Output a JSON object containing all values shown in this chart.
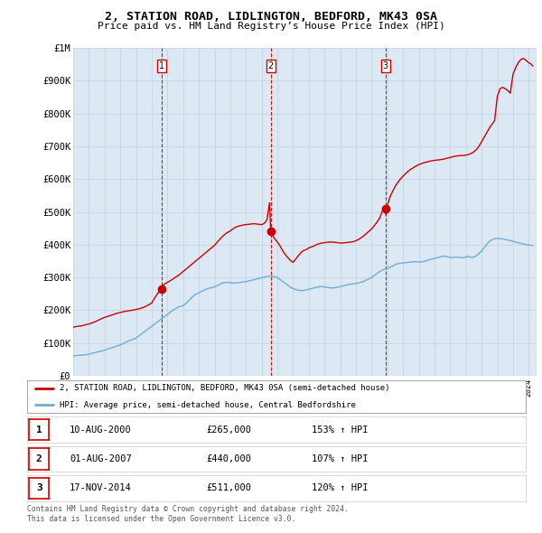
{
  "title": "2, STATION ROAD, LIDLINGTON, BEDFORD, MK43 0SA",
  "subtitle": "Price paid vs. HM Land Registry’s House Price Index (HPI)",
  "background_color": "#ffffff",
  "plot_bg_color": "#dce9f5",
  "grid_color": "#c8d8e8",
  "ylim": [
    0,
    1000000
  ],
  "yticks": [
    0,
    100000,
    200000,
    300000,
    400000,
    500000,
    600000,
    700000,
    800000,
    900000,
    1000000
  ],
  "ytick_labels": [
    "£0",
    "£100K",
    "£200K",
    "£300K",
    "£400K",
    "£500K",
    "£600K",
    "£700K",
    "£800K",
    "£900K",
    "£1M"
  ],
  "sale_dates": [
    "2000-08-10",
    "2007-08-01",
    "2014-11-17"
  ],
  "sale_prices": [
    265000,
    440000,
    511000
  ],
  "sale_labels": [
    "1",
    "2",
    "3"
  ],
  "sale_pct": [
    "153%",
    "107%",
    "120%"
  ],
  "sale_date_labels": [
    "10-AUG-2000",
    "01-AUG-2007",
    "17-NOV-2014"
  ],
  "hpi_color": "#6baed6",
  "price_color": "#cc0000",
  "vline_color": "#cc0000",
  "legend_label_price": "2, STATION ROAD, LIDLINGTON, BEDFORD, MK43 0SA (semi-detached house)",
  "legend_label_hpi": "HPI: Average price, semi-detached house, Central Bedfordshire",
  "footer": "Contains HM Land Registry data © Crown copyright and database right 2024.\nThis data is licensed under the Open Government Licence v3.0.",
  "hpi_x": [
    1995.0,
    1995.08,
    1995.17,
    1995.25,
    1995.33,
    1995.42,
    1995.5,
    1995.58,
    1995.67,
    1995.75,
    1995.83,
    1995.92,
    1996.0,
    1996.08,
    1996.17,
    1996.25,
    1996.33,
    1996.42,
    1996.5,
    1996.58,
    1996.67,
    1996.75,
    1996.83,
    1996.92,
    1997.0,
    1997.08,
    1997.17,
    1997.25,
    1997.33,
    1997.42,
    1997.5,
    1997.58,
    1997.67,
    1997.75,
    1997.83,
    1997.92,
    1998.0,
    1998.08,
    1998.17,
    1998.25,
    1998.33,
    1998.42,
    1998.5,
    1998.58,
    1998.67,
    1998.75,
    1998.83,
    1998.92,
    1999.0,
    1999.08,
    1999.17,
    1999.25,
    1999.33,
    1999.42,
    1999.5,
    1999.58,
    1999.67,
    1999.75,
    1999.83,
    1999.92,
    2000.0,
    2000.08,
    2000.17,
    2000.25,
    2000.33,
    2000.42,
    2000.5,
    2000.58,
    2000.67,
    2000.75,
    2000.83,
    2000.92,
    2001.0,
    2001.08,
    2001.17,
    2001.25,
    2001.33,
    2001.42,
    2001.5,
    2001.58,
    2001.67,
    2001.75,
    2001.83,
    2001.92,
    2002.0,
    2002.08,
    2002.17,
    2002.25,
    2002.33,
    2002.42,
    2002.5,
    2002.58,
    2002.67,
    2002.75,
    2002.83,
    2002.92,
    2003.0,
    2003.08,
    2003.17,
    2003.25,
    2003.33,
    2003.42,
    2003.5,
    2003.58,
    2003.67,
    2003.75,
    2003.83,
    2003.92,
    2004.0,
    2004.08,
    2004.17,
    2004.25,
    2004.33,
    2004.42,
    2004.5,
    2004.58,
    2004.67,
    2004.75,
    2004.83,
    2004.92,
    2005.0,
    2005.08,
    2005.17,
    2005.25,
    2005.33,
    2005.42,
    2005.5,
    2005.58,
    2005.67,
    2005.75,
    2005.83,
    2005.92,
    2006.0,
    2006.08,
    2006.17,
    2006.25,
    2006.33,
    2006.42,
    2006.5,
    2006.58,
    2006.67,
    2006.75,
    2006.83,
    2006.92,
    2007.0,
    2007.08,
    2007.17,
    2007.25,
    2007.33,
    2007.42,
    2007.5,
    2007.58,
    2007.67,
    2007.75,
    2007.83,
    2007.92,
    2008.0,
    2008.08,
    2008.17,
    2008.25,
    2008.33,
    2008.42,
    2008.5,
    2008.58,
    2008.67,
    2008.75,
    2008.83,
    2008.92,
    2009.0,
    2009.08,
    2009.17,
    2009.25,
    2009.33,
    2009.42,
    2009.5,
    2009.58,
    2009.67,
    2009.75,
    2009.83,
    2009.92,
    2010.0,
    2010.08,
    2010.17,
    2010.25,
    2010.33,
    2010.42,
    2010.5,
    2010.58,
    2010.67,
    2010.75,
    2010.83,
    2010.92,
    2011.0,
    2011.08,
    2011.17,
    2011.25,
    2011.33,
    2011.42,
    2011.5,
    2011.58,
    2011.67,
    2011.75,
    2011.83,
    2011.92,
    2012.0,
    2012.08,
    2012.17,
    2012.25,
    2012.33,
    2012.42,
    2012.5,
    2012.58,
    2012.67,
    2012.75,
    2012.83,
    2012.92,
    2013.0,
    2013.08,
    2013.17,
    2013.25,
    2013.33,
    2013.42,
    2013.5,
    2013.58,
    2013.67,
    2013.75,
    2013.83,
    2013.92,
    2014.0,
    2014.08,
    2014.17,
    2014.25,
    2014.33,
    2014.42,
    2014.5,
    2014.58,
    2014.67,
    2014.75,
    2014.83,
    2014.92,
    2015.0,
    2015.08,
    2015.17,
    2015.25,
    2015.33,
    2015.42,
    2015.5,
    2015.58,
    2015.67,
    2015.75,
    2015.83,
    2015.92,
    2016.0,
    2016.08,
    2016.17,
    2016.25,
    2016.33,
    2016.42,
    2016.5,
    2016.58,
    2016.67,
    2016.75,
    2016.83,
    2016.92,
    2017.0,
    2017.08,
    2017.17,
    2017.25,
    2017.33,
    2017.42,
    2017.5,
    2017.58,
    2017.67,
    2017.75,
    2017.83,
    2017.92,
    2018.0,
    2018.08,
    2018.17,
    2018.25,
    2018.33,
    2018.42,
    2018.5,
    2018.58,
    2018.67,
    2018.75,
    2018.83,
    2018.92,
    2019.0,
    2019.08,
    2019.17,
    2019.25,
    2019.33,
    2019.42,
    2019.5,
    2019.58,
    2019.67,
    2019.75,
    2019.83,
    2019.92,
    2020.0,
    2020.08,
    2020.17,
    2020.25,
    2020.33,
    2020.42,
    2020.5,
    2020.58,
    2020.67,
    2020.75,
    2020.83,
    2020.92,
    2021.0,
    2021.08,
    2021.17,
    2021.25,
    2021.33,
    2021.42,
    2021.5,
    2021.58,
    2021.67,
    2021.75,
    2021.83,
    2021.92,
    2022.0,
    2022.08,
    2022.17,
    2022.25,
    2022.33,
    2022.42,
    2022.5,
    2022.58,
    2022.67,
    2022.75,
    2022.83,
    2022.92,
    2023.0,
    2023.08,
    2023.17,
    2023.25,
    2023.33,
    2023.42,
    2023.5,
    2023.58,
    2023.67,
    2023.75,
    2023.83,
    2023.92,
    2024.0,
    2024.08,
    2024.17,
    2024.25
  ],
  "hpi_y": [
    60000,
    61000,
    62000,
    61500,
    62500,
    63000,
    62000,
    63500,
    64000,
    63000,
    64500,
    65000,
    66000,
    67000,
    68500,
    69000,
    70000,
    71000,
    72000,
    73500,
    74000,
    75000,
    76000,
    77000,
    78000,
    79500,
    81000,
    82000,
    83500,
    85000,
    86000,
    87500,
    89000,
    90000,
    91500,
    93000,
    94000,
    96000,
    98000,
    100000,
    102000,
    104000,
    106000,
    107000,
    108500,
    110000,
    112000,
    113000,
    115000,
    118000,
    121000,
    124000,
    127000,
    130000,
    133000,
    136000,
    139000,
    142000,
    145000,
    148000,
    151000,
    154000,
    157000,
    160000,
    163000,
    166000,
    169000,
    172000,
    175000,
    178000,
    181000,
    184000,
    187000,
    190000,
    193000,
    196000,
    199000,
    202000,
    205000,
    207000,
    209000,
    211000,
    212000,
    213000,
    214000,
    217000,
    220000,
    224000,
    228000,
    232000,
    236000,
    240000,
    244000,
    247000,
    249000,
    251000,
    253000,
    255000,
    257000,
    259000,
    261000,
    263000,
    265000,
    266000,
    267000,
    268000,
    269000,
    270000,
    271000,
    273000,
    275000,
    277000,
    279000,
    281000,
    283000,
    284000,
    284500,
    285000,
    285000,
    284500,
    284000,
    283500,
    283000,
    283000,
    283000,
    283500,
    284000,
    284500,
    285000,
    285500,
    286000,
    286500,
    287000,
    288000,
    289000,
    290000,
    291000,
    292000,
    293000,
    294000,
    295000,
    296000,
    297000,
    298000,
    299000,
    300000,
    301000,
    302000,
    303000,
    303500,
    304000,
    304000,
    304000,
    303000,
    302000,
    301000,
    300000,
    297000,
    294000,
    291000,
    288000,
    285000,
    282000,
    279000,
    276000,
    273000,
    270000,
    268000,
    266000,
    264500,
    263000,
    262000,
    261000,
    260500,
    260000,
    260000,
    260000,
    261000,
    262000,
    263000,
    264000,
    265000,
    266000,
    267000,
    268000,
    269000,
    270000,
    271000,
    271500,
    272000,
    272000,
    272000,
    271000,
    270000,
    269500,
    269000,
    268500,
    268000,
    268000,
    268000,
    268500,
    269000,
    270000,
    271000,
    272000,
    273000,
    274000,
    275000,
    276000,
    277000,
    278000,
    279000,
    280000,
    280500,
    281000,
    281000,
    281000,
    282000,
    283000,
    284000,
    285000,
    286500,
    288000,
    290000,
    292000,
    294000,
    296000,
    298000,
    300000,
    303000,
    306000,
    309000,
    312000,
    315000,
    318000,
    320000,
    322000,
    324000,
    325000,
    326000,
    327000,
    329000,
    331000,
    333000,
    335000,
    337000,
    339000,
    341000,
    342000,
    343000,
    343500,
    344000,
    344000,
    344500,
    345000,
    345500,
    346000,
    346500,
    347000,
    347500,
    348000,
    348000,
    348000,
    347500,
    347000,
    347000,
    347500,
    348000,
    349000,
    350000,
    351500,
    353000,
    354000,
    355000,
    356000,
    357000,
    358000,
    359000,
    360000,
    361000,
    362000,
    363000,
    364000,
    365000,
    365000,
    364000,
    363000,
    362000,
    361000,
    361000,
    361000,
    361500,
    362000,
    362000,
    362000,
    361000,
    360000,
    360000,
    360500,
    361000,
    362000,
    363000,
    364000,
    363000,
    362000,
    361000,
    362000,
    364000,
    366000,
    369000,
    373000,
    377000,
    381000,
    386000,
    391000,
    396000,
    401000,
    406000,
    410000,
    413000,
    415000,
    417000,
    418000,
    418500,
    419000,
    419000,
    418500,
    418000,
    417500,
    417000,
    416000,
    415000,
    414000,
    413000,
    412000,
    411000,
    410000,
    409000,
    408000,
    407000,
    406000,
    405000,
    404000,
    403000,
    402000,
    401000,
    400000,
    399500,
    399000,
    398500,
    398000,
    397500
  ],
  "price_x": [
    1995.0,
    1995.17,
    1995.5,
    1995.75,
    1996.0,
    1996.25,
    1996.5,
    1996.75,
    1997.0,
    1997.25,
    1997.5,
    1997.75,
    1998.0,
    1998.25,
    1998.5,
    1998.75,
    1999.0,
    1999.25,
    1999.5,
    1999.75,
    2000.0,
    2000.25,
    2000.58,
    2000.75,
    2001.0,
    2001.25,
    2001.5,
    2001.75,
    2002.0,
    2002.25,
    2002.5,
    2002.75,
    2003.0,
    2003.25,
    2003.5,
    2003.75,
    2004.0,
    2004.25,
    2004.5,
    2004.75,
    2005.0,
    2005.17,
    2005.33,
    2005.5,
    2005.67,
    2005.83,
    2006.0,
    2006.17,
    2006.33,
    2006.5,
    2006.67,
    2006.83,
    2007.0,
    2007.17,
    2007.33,
    2007.5,
    2007.58,
    2007.67,
    2007.75,
    2007.83,
    2008.0,
    2008.17,
    2008.33,
    2008.5,
    2008.67,
    2008.83,
    2009.0,
    2009.17,
    2009.33,
    2009.5,
    2009.67,
    2009.83,
    2010.0,
    2010.17,
    2010.33,
    2010.5,
    2010.67,
    2010.83,
    2011.0,
    2011.17,
    2011.33,
    2011.5,
    2011.67,
    2011.83,
    2012.0,
    2012.17,
    2012.33,
    2012.5,
    2012.67,
    2012.83,
    2013.0,
    2013.17,
    2013.33,
    2013.5,
    2013.67,
    2013.83,
    2014.0,
    2014.17,
    2014.33,
    2014.5,
    2014.75,
    2014.92,
    2015.0,
    2015.17,
    2015.33,
    2015.5,
    2015.67,
    2015.83,
    2016.0,
    2016.17,
    2016.33,
    2016.5,
    2016.67,
    2016.83,
    2017.0,
    2017.17,
    2017.33,
    2017.5,
    2017.67,
    2017.83,
    2018.0,
    2018.17,
    2018.33,
    2018.5,
    2018.67,
    2018.83,
    2019.0,
    2019.17,
    2019.33,
    2019.5,
    2019.67,
    2019.83,
    2020.0,
    2020.17,
    2020.33,
    2020.5,
    2020.67,
    2020.83,
    2021.0,
    2021.17,
    2021.33,
    2021.5,
    2021.67,
    2021.83,
    2022.0,
    2022.17,
    2022.33,
    2022.5,
    2022.67,
    2022.83,
    2023.0,
    2023.17,
    2023.33,
    2023.5,
    2023.67,
    2023.83,
    2024.0,
    2024.17,
    2024.25
  ],
  "price_y": [
    148000,
    150000,
    152000,
    155000,
    158000,
    162000,
    167000,
    173000,
    178000,
    182000,
    186000,
    190000,
    193000,
    196000,
    198000,
    200000,
    202000,
    205000,
    209000,
    215000,
    222000,
    242000,
    265000,
    278000,
    285000,
    292000,
    300000,
    308000,
    318000,
    328000,
    338000,
    348000,
    358000,
    368000,
    378000,
    388000,
    398000,
    412000,
    425000,
    435000,
    442000,
    448000,
    453000,
    456000,
    458000,
    460000,
    461000,
    462000,
    463000,
    464000,
    463000,
    462000,
    461000,
    465000,
    475000,
    528000,
    440000,
    432000,
    424000,
    418000,
    408000,
    396000,
    382000,
    370000,
    360000,
    352000,
    346000,
    356000,
    366000,
    376000,
    382000,
    385000,
    390000,
    393000,
    396000,
    400000,
    403000,
    405000,
    406000,
    407000,
    408000,
    408000,
    407000,
    406000,
    405000,
    405000,
    406000,
    407000,
    408000,
    409000,
    412000,
    416000,
    421000,
    427000,
    434000,
    441000,
    448000,
    458000,
    468000,
    480000,
    511000,
    490000,
    520000,
    545000,
    562000,
    578000,
    590000,
    600000,
    609000,
    617000,
    624000,
    630000,
    635000,
    640000,
    644000,
    647000,
    650000,
    652000,
    654000,
    656000,
    657000,
    658000,
    659000,
    660000,
    662000,
    664000,
    666000,
    668000,
    670000,
    671000,
    672000,
    672000,
    673000,
    675000,
    678000,
    683000,
    690000,
    700000,
    714000,
    728000,
    742000,
    756000,
    768000,
    778000,
    852000,
    875000,
    880000,
    876000,
    870000,
    862000,
    920000,
    940000,
    955000,
    965000,
    968000,
    962000,
    955000,
    950000,
    945000
  ]
}
